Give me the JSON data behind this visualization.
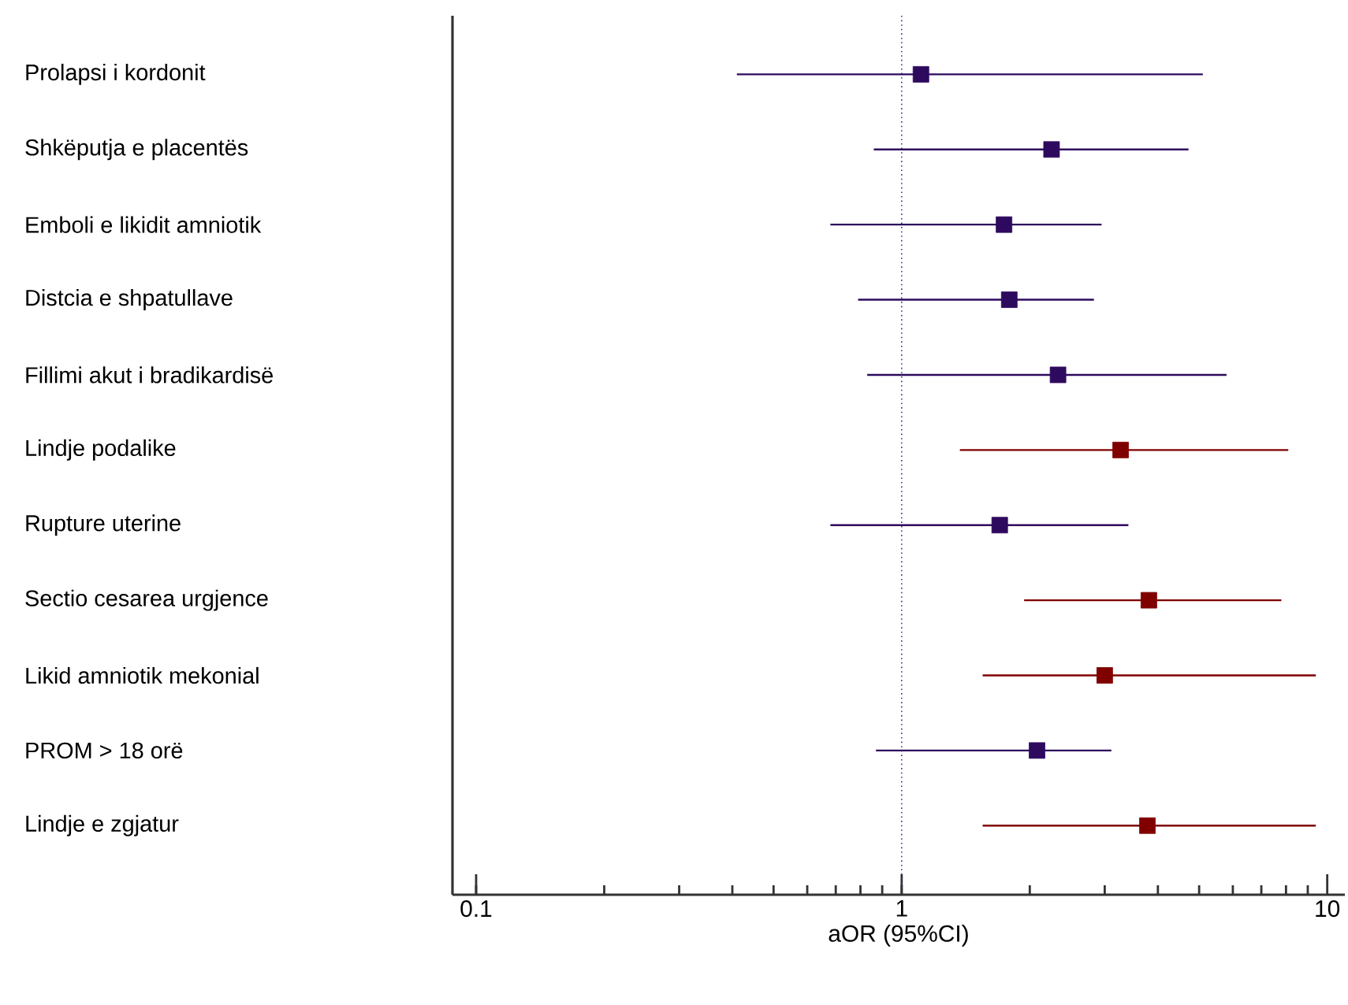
{
  "chart_data": {
    "type": "scatter",
    "orientation": "horizontal",
    "xlabel": "aOR (95%CI)",
    "categories": [
      "Prolapsi i kordonit",
      "Shkëputja e placentës",
      "Emboli e likidit amniotik",
      "Distcia e shpatullave",
      "Fillimi akut i bradikardisë",
      "Lindje podalike",
      "Rupture uterine",
      "Sectio cesarea urgjence",
      "Likid amniotik mekonial",
      "PROM > 18 orë",
      "Lindje e zgjatur"
    ],
    "values": [
      1.11,
      2.25,
      1.74,
      1.79,
      2.33,
      3.27,
      1.7,
      3.81,
      3.0,
      2.08,
      3.78
    ],
    "errors": [
      [
        0.41,
        5.1
      ],
      [
        0.86,
        4.72
      ],
      [
        0.68,
        2.95
      ],
      [
        0.79,
        2.83
      ],
      [
        0.83,
        5.8
      ],
      [
        1.37,
        8.1
      ],
      [
        0.68,
        3.41
      ],
      [
        1.94,
        7.8
      ],
      [
        1.55,
        9.4
      ],
      [
        0.87,
        3.11
      ],
      [
        1.55,
        9.4
      ]
    ],
    "colors": [
      "#2e0a5e",
      "#2e0a5e",
      "#2e0a5e",
      "#2e0a5e",
      "#2e0a5e",
      "#800000",
      "#2e0a5e",
      "#800000",
      "#800000",
      "#2e0a5e",
      "#800000"
    ],
    "marker": "square",
    "log": "x",
    "xlim": [
      0.088,
      11
    ],
    "xticks": [
      0.1,
      1,
      10
    ],
    "ref_lines": [
      {
        "axis": "x",
        "value": 1,
        "color": "#3333aa",
        "line_style": "dotted"
      }
    ]
  }
}
